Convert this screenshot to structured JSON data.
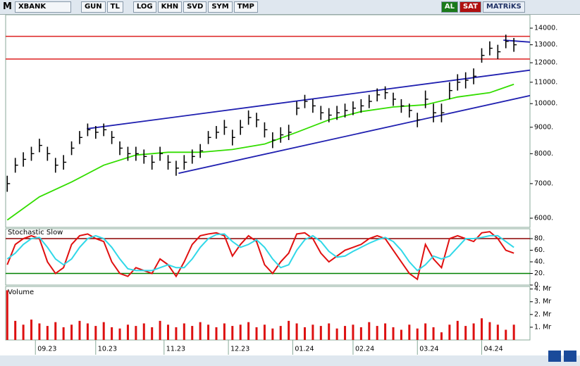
{
  "toolbar": {
    "logo": "M",
    "symbol": "XBANK",
    "buttons": [
      "GUN",
      "TL",
      "LOG",
      "KHN",
      "SVD",
      "SYM",
      "TMP"
    ],
    "buy": "AL",
    "sell": "SAT",
    "brand": "MATRiKS"
  },
  "chart_data": [
    {
      "type": "ohlc",
      "color": "#000000",
      "log": true,
      "xlim": [
        -0.2,
        65
      ],
      "xticks": [
        {
          "value": 3.5,
          "label": "09.23"
        },
        {
          "value": 11,
          "label": "10.23"
        },
        {
          "value": 19.5,
          "label": "11.23"
        },
        {
          "value": 27.5,
          "label": "12.23"
        },
        {
          "value": 35.5,
          "label": "01.24"
        },
        {
          "value": 43,
          "label": "02.24"
        },
        {
          "value": 51,
          "label": "03.24"
        },
        {
          "value": 59,
          "label": "04.24"
        }
      ],
      "ylim": [
        5760,
        14860
      ],
      "yticks": [
        {
          "value": 6000,
          "label": "6000."
        },
        {
          "value": 7000,
          "label": "7000."
        },
        {
          "value": 8000,
          "label": "8000."
        },
        {
          "value": 9000,
          "label": "9000."
        },
        {
          "value": 10000,
          "label": "10000."
        },
        {
          "value": 11000,
          "label": "11000."
        },
        {
          "value": 12000,
          "label": "12000."
        },
        {
          "value": 13000,
          "label": "13000."
        },
        {
          "value": 14000,
          "label": "14000."
        }
      ],
      "high": [
        7250,
        7850,
        8050,
        8250,
        8550,
        8250,
        7850,
        7950,
        8450,
        8850,
        9150,
        9050,
        9150,
        8850,
        8450,
        8250,
        8250,
        8150,
        7950,
        8250,
        7950,
        7750,
        7950,
        8150,
        8350,
        8850,
        9050,
        9300,
        8900,
        9300,
        9700,
        9600,
        9200,
        8800,
        9000,
        9100,
        10100,
        10400,
        10200,
        9900,
        9800,
        9900,
        10000,
        10100,
        10200,
        10400,
        10700,
        10800,
        10500,
        10200,
        10000,
        9600,
        10600,
        10000,
        10000,
        11000,
        11400,
        11500,
        11700,
        12800,
        13200,
        13000,
        13600,
        13400
      ],
      "low": [
        6750,
        7350,
        7550,
        7750,
        8050,
        7750,
        7350,
        7450,
        7950,
        8350,
        8650,
        8550,
        8650,
        8350,
        7950,
        7750,
        7750,
        7650,
        7450,
        7750,
        7450,
        7250,
        7450,
        7650,
        7850,
        8350,
        8550,
        8700,
        8300,
        8700,
        9100,
        9000,
        8600,
        8200,
        8400,
        8500,
        9500,
        9800,
        9600,
        9300,
        9200,
        9300,
        9400,
        9500,
        9600,
        9800,
        10100,
        10200,
        9900,
        9600,
        9400,
        9000,
        9800,
        9200,
        9200,
        10200,
        10600,
        10700,
        10900,
        12000,
        12400,
        12200,
        12800,
        12600
      ],
      "close": [
        7000,
        7600,
        7800,
        8000,
        8300,
        8000,
        7600,
        7700,
        8200,
        8600,
        8900,
        8800,
        8900,
        8600,
        8200,
        8000,
        8000,
        7900,
        7700,
        8000,
        7700,
        7500,
        7700,
        7900,
        8100,
        8600,
        8800,
        9000,
        8600,
        9000,
        9400,
        9300,
        8900,
        8500,
        8700,
        8800,
        9800,
        10100,
        9900,
        9600,
        9500,
        9600,
        9700,
        9800,
        9900,
        10100,
        10400,
        10500,
        10200,
        9900,
        9700,
        9300,
        10200,
        9600,
        9600,
        10600,
        11000,
        11100,
        11300,
        12400,
        12800,
        12600,
        13200,
        13000
      ],
      "moving_average": {
        "color": "#33dd00",
        "x": [
          0,
          4,
          8,
          12,
          16,
          20,
          24,
          28,
          32,
          36,
          40,
          44,
          48,
          52,
          56,
          60,
          63
        ],
        "values": [
          5950,
          6600,
          7050,
          7600,
          7950,
          8050,
          8050,
          8150,
          8350,
          8800,
          9300,
          9650,
          9850,
          9950,
          10300,
          10500,
          10900
        ]
      },
      "hlines": {
        "color": "#dd2020",
        "values": [
          13500,
          12200
        ]
      },
      "trendlines": {
        "color": "#2020b0",
        "lines": [
          {
            "start": [
              9.9,
              8940
            ],
            "end": [
              65.2,
              11620
            ]
          },
          {
            "start": [
              21.3,
              7330
            ],
            "end": [
              65.2,
              10380
            ]
          },
          {
            "start": [
              61.7,
              13270
            ],
            "end": [
              65.2,
              13150
            ]
          }
        ]
      }
    },
    {
      "type": "line",
      "title": "Stochastic Slow",
      "ylim": [
        0,
        97
      ],
      "yticks": [
        {
          "value": 0,
          "label": "0."
        },
        {
          "value": 20,
          "label": "20."
        },
        {
          "value": 40,
          "label": "40."
        },
        {
          "value": 60,
          "label": "60."
        },
        {
          "value": 80,
          "label": "80."
        }
      ],
      "levels": [
        {
          "value": 80,
          "color": "#8b0000"
        },
        {
          "value": 20,
          "color": "#008000"
        }
      ],
      "series": [
        {
          "color": "#e01010",
          "values": [
            35,
            70,
            80,
            85,
            80,
            40,
            20,
            30,
            70,
            85,
            88,
            80,
            75,
            40,
            20,
            15,
            30,
            25,
            20,
            45,
            35,
            15,
            40,
            70,
            85,
            88,
            90,
            85,
            50,
            70,
            85,
            75,
            35,
            20,
            40,
            55,
            88,
            90,
            80,
            55,
            40,
            50,
            60,
            65,
            70,
            80,
            85,
            80,
            60,
            40,
            20,
            10,
            70,
            45,
            30,
            80,
            85,
            80,
            75,
            90,
            92,
            80,
            60,
            55
          ]
        },
        {
          "color": "#30d8e8",
          "values": [
            45,
            55,
            70,
            80,
            82,
            65,
            45,
            35,
            45,
            65,
            80,
            85,
            80,
            65,
            45,
            28,
            25,
            25,
            25,
            30,
            35,
            30,
            30,
            45,
            65,
            80,
            87,
            88,
            75,
            65,
            70,
            78,
            65,
            45,
            30,
            35,
            60,
            78,
            85,
            75,
            58,
            48,
            50,
            58,
            65,
            72,
            78,
            82,
            75,
            60,
            40,
            25,
            35,
            50,
            45,
            50,
            65,
            80,
            80,
            82,
            85,
            85,
            75,
            65
          ]
        }
      ]
    },
    {
      "type": "bar",
      "title": "Volume",
      "color": "#dd1010",
      "ylim": [
        0,
        4.2
      ],
      "yticks": [
        {
          "value": 1,
          "label": "1. Mr"
        },
        {
          "value": 2,
          "label": "2. Mr"
        },
        {
          "value": 3,
          "label": "3. Mr"
        },
        {
          "value": 4,
          "label": "4. Mr"
        }
      ],
      "values": [
        3.9,
        1.5,
        1.2,
        1.6,
        1.3,
        1.1,
        1.4,
        1.0,
        1.2,
        1.5,
        1.3,
        1.1,
        1.4,
        1.0,
        0.9,
        1.2,
        1.1,
        1.3,
        1.0,
        1.5,
        1.2,
        1.0,
        1.3,
        1.1,
        1.4,
        1.2,
        1.0,
        1.3,
        1.1,
        1.2,
        1.4,
        1.0,
        1.2,
        0.9,
        1.1,
        1.5,
        1.3,
        1.0,
        1.2,
        1.1,
        1.3,
        0.9,
        1.1,
        1.2,
        1.0,
        1.4,
        1.1,
        1.3,
        1.0,
        0.8,
        1.2,
        0.9,
        1.3,
        1.0,
        0.6,
        1.2,
        1.5,
        1.1,
        1.3,
        1.7,
        1.4,
        1.2,
        0.8,
        1.2
      ]
    }
  ]
}
